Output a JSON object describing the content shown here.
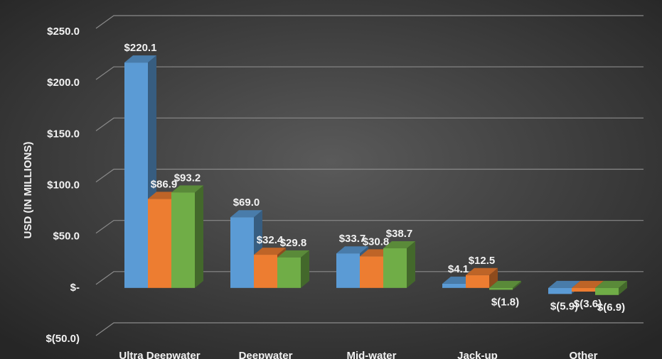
{
  "chart_data": {
    "type": "bar3d",
    "y_axis_label": "USD (IN MILLIONS)",
    "categories": [
      "Ultra Deepwater",
      "Deepwater",
      "Mid-water",
      "Jack-up",
      "Other"
    ],
    "series": [
      {
        "color": "#5b9bd5",
        "values": [
          220.1,
          69.0,
          33.7,
          4.1,
          -5.9
        ],
        "value_labels": [
          "$220.1",
          "$69.0",
          "$33.7",
          "$4.1",
          "$(5.9)"
        ]
      },
      {
        "color": "#ed7d31",
        "values": [
          86.9,
          32.4,
          30.8,
          12.5,
          -3.6
        ],
        "value_labels": [
          "$86.9",
          "$32.4",
          "$30.8",
          "$12.5",
          "$(3.6)"
        ]
      },
      {
        "color": "#70ad47",
        "values": [
          93.2,
          29.8,
          38.7,
          -1.8,
          -6.9
        ],
        "value_labels": [
          "$93.2",
          "$29.8",
          "$38.7",
          "$(1.8)",
          "$(6.9)"
        ]
      }
    ],
    "ylim": [
      -50,
      250
    ],
    "yticks": [
      {
        "value": -50,
        "label": "$(50.0)"
      },
      {
        "value": 0,
        "label": "$-"
      },
      {
        "value": 50,
        "label": "$50.0"
      },
      {
        "value": 100,
        "label": "$100.0"
      },
      {
        "value": 150,
        "label": "$150.0"
      },
      {
        "value": 200,
        "label": "$200.0"
      },
      {
        "value": 250,
        "label": "$250.0"
      }
    ],
    "grid": true
  }
}
